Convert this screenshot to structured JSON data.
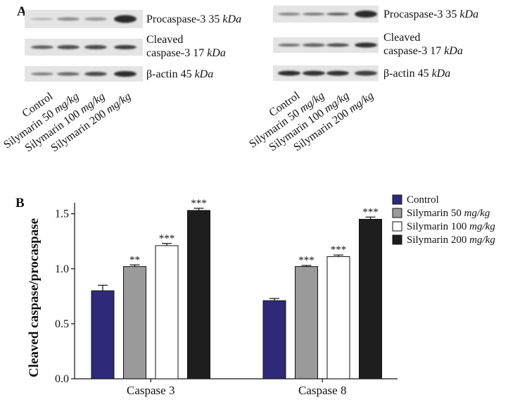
{
  "panel_a": {
    "label": "A",
    "blots": [
      {
        "rows": [
          {
            "name": "Procaspase-3 35 ",
            "unit": "kDa"
          },
          {
            "name": "Cleaved",
            "name2": "caspase-3 17 ",
            "unit": "kDa"
          },
          {
            "name": "β-actin 45 ",
            "unit": "kDa"
          }
        ],
        "lanes": [
          {
            "label": "Control",
            "unit": ""
          },
          {
            "label": "Silymarin 50 ",
            "unit": "mg/kg"
          },
          {
            "label": "Silymarin 100 ",
            "unit": "mg/kg"
          },
          {
            "label": "Silymarin 200 ",
            "unit": "mg/kg"
          }
        ]
      },
      {
        "rows": [
          {
            "name": "Procaspase-3 35 ",
            "unit": "kDa"
          },
          {
            "name": "Cleaved",
            "name2": "caspase-3 17 ",
            "unit": "kDa"
          },
          {
            "name": "β-actin 45 ",
            "unit": "kDa"
          }
        ],
        "lanes": [
          {
            "label": "Control",
            "unit": ""
          },
          {
            "label": "Silymarin 50 ",
            "unit": "mg/kg"
          },
          {
            "label": "Silymarin 100 ",
            "unit": "mg/kg"
          },
          {
            "label": "Silymarin 200 ",
            "unit": "mg/kg"
          }
        ]
      }
    ]
  },
  "panel_b": {
    "label": "B"
  },
  "colors": {
    "control": "#2e2a78",
    "sil50": "#9a9a9a",
    "sil100": "#ffffff",
    "sil200": "#1e1e1e"
  },
  "chart_data": {
    "type": "bar",
    "categories": [
      "Caspase 3",
      "Caspase 8"
    ],
    "ylabel": "Cleaved caspase/procaspase",
    "ylim": [
      0,
      1.6
    ],
    "yticks": [
      "0.0",
      "0.5",
      "1.0",
      "1.5"
    ],
    "legend_position": "top-right",
    "series": [
      {
        "name": "Control",
        "unit": "",
        "values": [
          0.8,
          0.71
        ],
        "errors": [
          0.05,
          0.02
        ],
        "stars": [
          "",
          ""
        ]
      },
      {
        "name": "Silymarin 50 ",
        "unit": "mg/kg",
        "values": [
          1.02,
          1.02
        ],
        "errors": [
          0.015,
          0.01
        ],
        "stars": [
          "**",
          "***"
        ]
      },
      {
        "name": "Silymarin 100 ",
        "unit": "mg/kg",
        "values": [
          1.21,
          1.11
        ],
        "errors": [
          0.02,
          0.015
        ],
        "stars": [
          "***",
          "***"
        ]
      },
      {
        "name": "Silymarin 200 ",
        "unit": "mg/kg",
        "values": [
          1.53,
          1.45
        ],
        "errors": [
          0.02,
          0.02
        ],
        "stars": [
          "***",
          "***"
        ]
      }
    ]
  }
}
